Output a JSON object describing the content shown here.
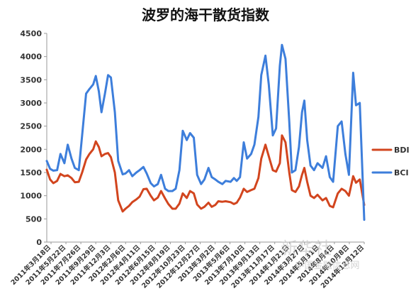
{
  "watermark": {
    "logo_text": "新华社",
    "site_text": "中国金融信息网"
  },
  "chart_data": {
    "type": "line",
    "title": "波罗的海干散货指数",
    "xlabel": "",
    "ylabel": "",
    "ylim": [
      0,
      4500
    ],
    "yticks": [
      0,
      500,
      1000,
      1500,
      2000,
      2500,
      3000,
      3500,
      4000,
      4500
    ],
    "grid": false,
    "legend_position": "right",
    "x_range": [
      "2011-03-18",
      "2014-11-24"
    ],
    "x_tick_labels": [
      "2011年3月18日",
      "2011年5月22日",
      "2011年7月26日",
      "2011年9月29日",
      "2011年12月3日",
      "2012年2月6日",
      "2012年4月11日",
      "2012年6月15日",
      "2012年8月19日",
      "2012年10月23日",
      "2012年12月27日",
      "2013年3月2日",
      "2013年5月6日",
      "2013年7月10日",
      "2013年9月13日",
      "2013年11月17日",
      "2014年1月21日",
      "2014年3月27日",
      "2014年5月31日",
      "2014年8月4日",
      "2014年10月8日",
      "2014年12月12日"
    ],
    "series": [
      {
        "name": "BDI",
        "color": "#d2451e",
        "points": [
          [
            "2011-03-18",
            1560
          ],
          [
            "2011-04-01",
            1350
          ],
          [
            "2011-04-15",
            1270
          ],
          [
            "2011-05-01",
            1320
          ],
          [
            "2011-05-15",
            1470
          ],
          [
            "2011-06-01",
            1420
          ],
          [
            "2011-06-15",
            1440
          ],
          [
            "2011-07-01",
            1380
          ],
          [
            "2011-07-15",
            1290
          ],
          [
            "2011-08-01",
            1300
          ],
          [
            "2011-08-15",
            1500
          ],
          [
            "2011-09-01",
            1780
          ],
          [
            "2011-09-15",
            1900
          ],
          [
            "2011-10-01",
            2000
          ],
          [
            "2011-10-12",
            2170
          ],
          [
            "2011-10-25",
            2050
          ],
          [
            "2011-11-05",
            1850
          ],
          [
            "2011-11-20",
            1900
          ],
          [
            "2011-12-03",
            1920
          ],
          [
            "2011-12-15",
            1830
          ],
          [
            "2012-01-01",
            1500
          ],
          [
            "2012-01-15",
            900
          ],
          [
            "2012-02-03",
            660
          ],
          [
            "2012-02-15",
            720
          ],
          [
            "2012-03-01",
            780
          ],
          [
            "2012-03-15",
            860
          ],
          [
            "2012-04-01",
            920
          ],
          [
            "2012-04-15",
            980
          ],
          [
            "2012-05-01",
            1140
          ],
          [
            "2012-05-15",
            1150
          ],
          [
            "2012-06-01",
            1000
          ],
          [
            "2012-06-15",
            900
          ],
          [
            "2012-07-01",
            960
          ],
          [
            "2012-07-15",
            1100
          ],
          [
            "2012-08-01",
            940
          ],
          [
            "2012-08-15",
            820
          ],
          [
            "2012-09-01",
            720
          ],
          [
            "2012-09-15",
            720
          ],
          [
            "2012-10-01",
            830
          ],
          [
            "2012-10-15",
            1050
          ],
          [
            "2012-11-01",
            950
          ],
          [
            "2012-11-15",
            1100
          ],
          [
            "2012-12-01",
            1050
          ],
          [
            "2012-12-15",
            810
          ],
          [
            "2013-01-01",
            720
          ],
          [
            "2013-01-15",
            760
          ],
          [
            "2013-02-01",
            850
          ],
          [
            "2013-02-15",
            760
          ],
          [
            "2013-03-02",
            800
          ],
          [
            "2013-03-15",
            880
          ],
          [
            "2013-04-01",
            870
          ],
          [
            "2013-04-15",
            880
          ],
          [
            "2013-05-06",
            860
          ],
          [
            "2013-05-20",
            820
          ],
          [
            "2013-06-01",
            850
          ],
          [
            "2013-06-15",
            960
          ],
          [
            "2013-07-01",
            1150
          ],
          [
            "2013-07-15",
            1080
          ],
          [
            "2013-08-01",
            1120
          ],
          [
            "2013-08-15",
            1150
          ],
          [
            "2013-09-01",
            1380
          ],
          [
            "2013-09-13",
            1800
          ],
          [
            "2013-10-01",
            2100
          ],
          [
            "2013-10-15",
            1850
          ],
          [
            "2013-11-01",
            1550
          ],
          [
            "2013-11-15",
            1520
          ],
          [
            "2013-12-01",
            1700
          ],
          [
            "2013-12-10",
            2300
          ],
          [
            "2013-12-25",
            2150
          ],
          [
            "2014-01-10",
            1500
          ],
          [
            "2014-01-21",
            1120
          ],
          [
            "2014-02-05",
            1080
          ],
          [
            "2014-02-20",
            1200
          ],
          [
            "2014-03-05",
            1450
          ],
          [
            "2014-03-15",
            1600
          ],
          [
            "2014-03-27",
            1300
          ],
          [
            "2014-04-10",
            1000
          ],
          [
            "2014-04-25",
            950
          ],
          [
            "2014-05-10",
            1020
          ],
          [
            "2014-05-31",
            900
          ],
          [
            "2014-06-15",
            950
          ],
          [
            "2014-07-01",
            780
          ],
          [
            "2014-07-15",
            750
          ],
          [
            "2014-08-04",
            1050
          ],
          [
            "2014-08-20",
            1150
          ],
          [
            "2014-09-05",
            1100
          ],
          [
            "2014-09-20",
            1000
          ],
          [
            "2014-10-08",
            1420
          ],
          [
            "2014-10-20",
            1280
          ],
          [
            "2014-11-05",
            1350
          ],
          [
            "2014-11-24",
            800
          ]
        ]
      },
      {
        "name": "BCI",
        "color": "#3d7edb",
        "points": [
          [
            "2011-03-18",
            1750
          ],
          [
            "2011-04-01",
            1580
          ],
          [
            "2011-04-15",
            1540
          ],
          [
            "2011-05-01",
            1550
          ],
          [
            "2011-05-15",
            1900
          ],
          [
            "2011-06-01",
            1700
          ],
          [
            "2011-06-15",
            2100
          ],
          [
            "2011-07-01",
            1800
          ],
          [
            "2011-07-15",
            1600
          ],
          [
            "2011-08-01",
            1550
          ],
          [
            "2011-08-15",
            2300
          ],
          [
            "2011-09-01",
            3200
          ],
          [
            "2011-09-15",
            3300
          ],
          [
            "2011-10-01",
            3400
          ],
          [
            "2011-10-12",
            3580
          ],
          [
            "2011-10-25",
            3250
          ],
          [
            "2011-11-05",
            2800
          ],
          [
            "2011-11-20",
            3200
          ],
          [
            "2011-12-03",
            3600
          ],
          [
            "2011-12-15",
            3550
          ],
          [
            "2012-01-01",
            2800
          ],
          [
            "2012-01-15",
            1750
          ],
          [
            "2012-02-03",
            1460
          ],
          [
            "2012-02-15",
            1480
          ],
          [
            "2012-03-01",
            1550
          ],
          [
            "2012-03-15",
            1420
          ],
          [
            "2012-04-01",
            1500
          ],
          [
            "2012-04-15",
            1550
          ],
          [
            "2012-05-01",
            1620
          ],
          [
            "2012-05-15",
            1480
          ],
          [
            "2012-06-01",
            1270
          ],
          [
            "2012-06-15",
            1200
          ],
          [
            "2012-07-01",
            1250
          ],
          [
            "2012-07-15",
            1450
          ],
          [
            "2012-08-01",
            1150
          ],
          [
            "2012-08-15",
            1100
          ],
          [
            "2012-09-01",
            1100
          ],
          [
            "2012-09-15",
            1150
          ],
          [
            "2012-10-01",
            1550
          ],
          [
            "2012-10-15",
            2400
          ],
          [
            "2012-11-01",
            2200
          ],
          [
            "2012-11-15",
            2350
          ],
          [
            "2012-12-01",
            2250
          ],
          [
            "2012-12-15",
            1450
          ],
          [
            "2013-01-01",
            1250
          ],
          [
            "2013-01-15",
            1350
          ],
          [
            "2013-02-01",
            1600
          ],
          [
            "2013-02-15",
            1400
          ],
          [
            "2013-03-02",
            1350
          ],
          [
            "2013-03-15",
            1300
          ],
          [
            "2013-04-01",
            1250
          ],
          [
            "2013-04-15",
            1320
          ],
          [
            "2013-05-06",
            1300
          ],
          [
            "2013-05-20",
            1380
          ],
          [
            "2013-06-01",
            1320
          ],
          [
            "2013-06-15",
            1400
          ],
          [
            "2013-07-01",
            2150
          ],
          [
            "2013-07-15",
            1800
          ],
          [
            "2013-08-01",
            1900
          ],
          [
            "2013-08-15",
            2100
          ],
          [
            "2013-09-01",
            2700
          ],
          [
            "2013-09-13",
            3600
          ],
          [
            "2013-10-01",
            4020
          ],
          [
            "2013-10-15",
            3400
          ],
          [
            "2013-11-01",
            2300
          ],
          [
            "2013-11-15",
            2450
          ],
          [
            "2013-12-01",
            3800
          ],
          [
            "2013-12-10",
            4250
          ],
          [
            "2013-12-25",
            3950
          ],
          [
            "2014-01-10",
            2600
          ],
          [
            "2014-01-21",
            1500
          ],
          [
            "2014-02-05",
            1550
          ],
          [
            "2014-02-20",
            2050
          ],
          [
            "2014-03-05",
            2800
          ],
          [
            "2014-03-15",
            3050
          ],
          [
            "2014-03-27",
            2200
          ],
          [
            "2014-04-10",
            1650
          ],
          [
            "2014-04-25",
            1550
          ],
          [
            "2014-05-10",
            1700
          ],
          [
            "2014-05-31",
            1600
          ],
          [
            "2014-06-15",
            1850
          ],
          [
            "2014-07-01",
            1400
          ],
          [
            "2014-07-15",
            1300
          ],
          [
            "2014-08-04",
            2500
          ],
          [
            "2014-08-20",
            2600
          ],
          [
            "2014-09-05",
            1900
          ],
          [
            "2014-09-20",
            1450
          ],
          [
            "2014-10-08",
            3650
          ],
          [
            "2014-10-20",
            2950
          ],
          [
            "2014-11-05",
            3000
          ],
          [
            "2014-11-24",
            480
          ]
        ]
      }
    ]
  }
}
